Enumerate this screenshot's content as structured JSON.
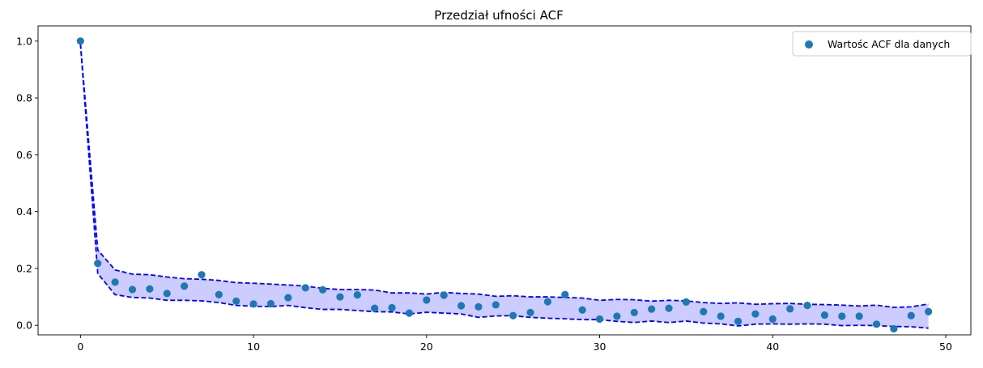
{
  "chart_data": {
    "type": "scatter",
    "title": "Przedział ufności ACF",
    "xlabel": "",
    "ylabel": "",
    "xlim": [
      -2.45,
      51.45
    ],
    "ylim": [
      -0.0335,
      1.0535
    ],
    "xticks": [
      0,
      10,
      20,
      30,
      40,
      50
    ],
    "yticks": [
      0.0,
      0.2,
      0.4,
      0.6,
      0.8,
      1.0
    ],
    "ytick_labels": [
      "0.0",
      "0.2",
      "0.4",
      "0.6",
      "0.8",
      "1.0"
    ],
    "legend_position": "top-right",
    "grid": false,
    "series": [
      {
        "name": "Wartośc ACF dla danych",
        "kind": "scatter",
        "color": "#1f77b4",
        "x": [
          0,
          1,
          2,
          3,
          4,
          5,
          6,
          7,
          8,
          9,
          10,
          11,
          12,
          13,
          14,
          15,
          16,
          17,
          18,
          19,
          20,
          21,
          22,
          23,
          24,
          25,
          26,
          27,
          28,
          29,
          30,
          31,
          32,
          33,
          34,
          35,
          36,
          37,
          38,
          39,
          40,
          41,
          42,
          43,
          44,
          45,
          46,
          47,
          48,
          49
        ],
        "y": [
          1.0,
          0.218,
          0.152,
          0.126,
          0.128,
          0.112,
          0.138,
          0.178,
          0.108,
          0.085,
          0.075,
          0.076,
          0.097,
          0.132,
          0.125,
          0.1,
          0.107,
          0.06,
          0.062,
          0.043,
          0.089,
          0.106,
          0.069,
          0.065,
          0.072,
          0.034,
          0.045,
          0.083,
          0.108,
          0.054,
          0.022,
          0.032,
          0.045,
          0.057,
          0.06,
          0.082,
          0.048,
          0.032,
          0.014,
          0.04,
          0.022,
          0.058,
          0.07,
          0.036,
          0.032,
          0.032,
          0.004,
          -0.012,
          0.034,
          0.048
        ]
      }
    ],
    "confidence_band": {
      "color": "#0000ff",
      "fill_color": "#0000ff",
      "fill_opacity": 0.2,
      "upper": [
        0.99,
        0.265,
        0.195,
        0.18,
        0.178,
        0.17,
        0.164,
        0.162,
        0.158,
        0.15,
        0.148,
        0.145,
        0.142,
        0.138,
        0.13,
        0.126,
        0.126,
        0.124,
        0.114,
        0.114,
        0.11,
        0.116,
        0.112,
        0.11,
        0.102,
        0.104,
        0.1,
        0.1,
        0.098,
        0.096,
        0.088,
        0.091,
        0.09,
        0.085,
        0.088,
        0.086,
        0.08,
        0.077,
        0.079,
        0.074,
        0.076,
        0.077,
        0.074,
        0.073,
        0.071,
        0.068,
        0.071,
        0.063,
        0.065,
        0.075
      ],
      "lower": [
        0.99,
        0.182,
        0.108,
        0.098,
        0.096,
        0.088,
        0.088,
        0.086,
        0.08,
        0.07,
        0.067,
        0.066,
        0.07,
        0.062,
        0.056,
        0.056,
        0.052,
        0.048,
        0.047,
        0.04,
        0.046,
        0.043,
        0.04,
        0.028,
        0.033,
        0.034,
        0.028,
        0.025,
        0.023,
        0.02,
        0.02,
        0.014,
        0.01,
        0.015,
        0.01,
        0.015,
        0.008,
        0.005,
        -0.002,
        0.004,
        0.005,
        0.004,
        0.005,
        0.004,
        -0.001,
        0.0,
        -0.001,
        -0.004,
        -0.005,
        -0.01
      ]
    }
  }
}
